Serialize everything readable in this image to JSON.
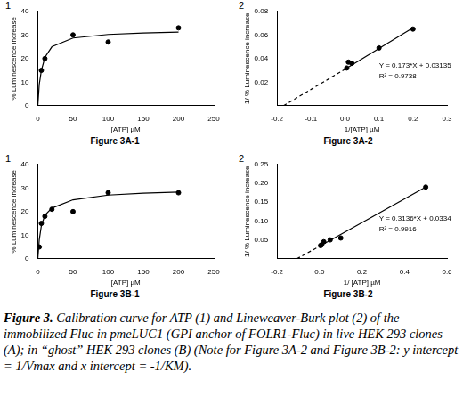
{
  "chart_data": [
    {
      "type": "scatter",
      "title": "1",
      "subtitle": "Figure 3A-1",
      "xlabel": "[ATP] µM",
      "ylabel": "% Luminescence increase",
      "xlim": [
        0,
        250
      ],
      "xticks": [
        0,
        50,
        100,
        150,
        200,
        250
      ],
      "ylim": [
        0,
        40
      ],
      "yticks": [
        0,
        10,
        20,
        30,
        40
      ],
      "grid": false,
      "series": [
        {
          "type": "scatter",
          "color": "#000000",
          "marker": "circle",
          "x": [
            5,
            10,
            50,
            100,
            200
          ],
          "values": [
            15,
            20,
            30,
            27,
            33
          ]
        },
        {
          "type": "line",
          "color": "#000000",
          "line_style": "solid",
          "x": [
            0,
            2,
            5,
            10,
            20,
            50,
            100,
            150,
            200
          ],
          "values": [
            0,
            9,
            15,
            20.5,
            25,
            28.7,
            30.2,
            30.8,
            31.2
          ]
        }
      ]
    },
    {
      "type": "scatter",
      "title": "2",
      "subtitle": "Figure 3A-2",
      "xlabel": "1/[ATP] µM",
      "ylabel": "1/ % Luminescence increase",
      "xlim": [
        -0.2,
        0.3
      ],
      "xticks": [
        {
          "value": -0.2,
          "label": "-0.2"
        },
        {
          "value": -0.1,
          "label": "-0.1"
        },
        {
          "value": 0,
          "label": "0.0"
        },
        {
          "value": 0.1,
          "label": "0.1"
        },
        {
          "value": 0.2,
          "label": "0.2"
        },
        {
          "value": 0.3,
          "label": "0.3"
        }
      ],
      "ylim": [
        0,
        0.08
      ],
      "yticks": [
        0.02,
        0.04,
        0.06,
        0.08
      ],
      "grid": false,
      "annotations": [
        "Y = 0.173*X + 0.03135",
        "R² = 0.9738"
      ],
      "series": [
        {
          "type": "scatter",
          "color": "#000000",
          "marker": "circle",
          "x": [
            0.2,
            0.1,
            0.02,
            0.01,
            0.005
          ],
          "values": [
            0.065,
            0.049,
            0.036,
            0.037,
            0.032
          ]
        },
        {
          "type": "line",
          "color": "#000000",
          "line_style": "solid",
          "x": [
            0,
            0.2
          ],
          "values": [
            0.031,
            0.066
          ]
        },
        {
          "type": "line",
          "color": "#000000",
          "line_style": "dashed",
          "x": [
            -0.181,
            0
          ],
          "values": [
            0,
            0.031
          ]
        }
      ]
    },
    {
      "type": "scatter",
      "title": "1",
      "subtitle": "Figure 3B-1",
      "xlabel": "[ATP] µM",
      "ylabel": "% Luminescence increase",
      "xlim": [
        0,
        250
      ],
      "xticks": [
        0,
        50,
        100,
        150,
        200,
        250
      ],
      "ylim": [
        0,
        40
      ],
      "yticks": [
        0,
        10,
        20,
        30,
        40
      ],
      "grid": false,
      "series": [
        {
          "type": "scatter",
          "color": "#000000",
          "marker": "circle",
          "x": [
            2,
            5,
            10,
            20,
            50,
            100,
            200
          ],
          "values": [
            5,
            15,
            18,
            21,
            20,
            28,
            28
          ]
        },
        {
          "type": "line",
          "color": "#000000",
          "line_style": "solid",
          "x": [
            0,
            2,
            5,
            10,
            20,
            50,
            100,
            150,
            200
          ],
          "values": [
            0,
            8,
            14,
            18.5,
            21.5,
            25,
            27,
            27.8,
            28.3
          ]
        }
      ]
    },
    {
      "type": "scatter",
      "title": "2",
      "subtitle": "Figure 3B-2",
      "xlabel": "1/ [ATP] µM",
      "ylabel": "1/ % Luminescence increase",
      "xlim": [
        -0.2,
        0.6
      ],
      "xticks": [
        {
          "value": -0.2,
          "label": "-0.2"
        },
        {
          "value": 0,
          "label": "0.0"
        },
        {
          "value": 0.2,
          "label": "0.2"
        },
        {
          "value": 0.4,
          "label": "0.4"
        },
        {
          "value": 0.6,
          "label": "0.6"
        }
      ],
      "ylim": [
        0,
        0.25
      ],
      "yticks": [
        {
          "value": 0.05,
          "label": "0.05"
        },
        {
          "value": 0.1,
          "label": "0.10"
        },
        {
          "value": 0.15,
          "label": "0.15"
        },
        {
          "value": 0.2,
          "label": "0.20"
        },
        {
          "value": 0.25,
          "label": "0.25"
        }
      ],
      "grid": false,
      "annotations": [
        "Y = 0.3136*X + 0.0334",
        "R² = 0.9916"
      ],
      "series": [
        {
          "type": "scatter",
          "color": "#000000",
          "marker": "circle",
          "x": [
            0.5,
            0.1,
            0.05,
            0.02,
            0.01,
            0.005
          ],
          "values": [
            0.19,
            0.055,
            0.05,
            0.045,
            0.037,
            0.035
          ]
        },
        {
          "type": "line",
          "color": "#000000",
          "line_style": "solid",
          "x": [
            0,
            0.5
          ],
          "values": [
            0.033,
            0.19
          ]
        },
        {
          "type": "line",
          "color": "#000000",
          "line_style": "dashed",
          "x": [
            -0.107,
            0
          ],
          "values": [
            0,
            0.033
          ]
        }
      ]
    }
  ],
  "caption": {
    "label": "Figure 3.",
    "text": "Calibration curve for ATP (1) and Lineweaver-Burk plot (2) of the immobilized Fluc in pmeLUC1 (GPI anchor of FOLR1-Fluc) in live HEK 293 clones (A); in “ghost” HEK 293 clones (B) (Note for Figure 3A-2 and Figure 3B-2: y intercept = 1/Vmax and x intercept = -1/KM)."
  }
}
